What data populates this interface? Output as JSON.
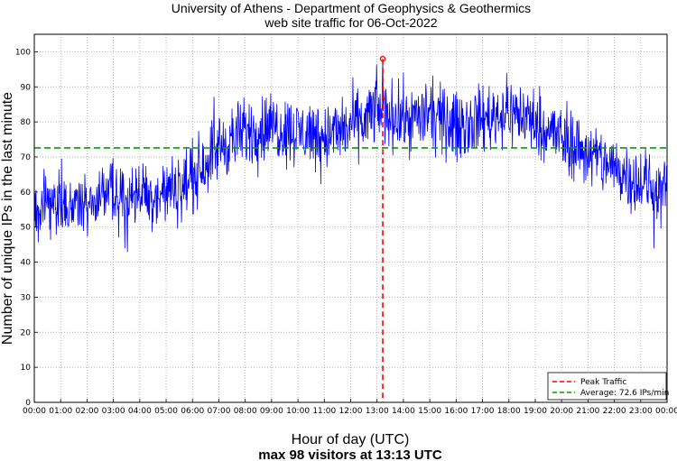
{
  "chart_data": {
    "type": "line",
    "title": "University of Athens - Department of Geophysics & Geothermics",
    "subtitle": "web site traffic for 06-Oct-2022",
    "xlabel": "Hour of day (UTC)",
    "ylabel": "Number of unique IPs in the last minute",
    "footer": "max 98 visitors at 13:13 UTC",
    "xlim": [
      0,
      24
    ],
    "ylim": [
      0,
      105
    ],
    "grid": true,
    "x_ticks": [
      "00:00",
      "01:00",
      "02:00",
      "03:00",
      "04:00",
      "05:00",
      "06:00",
      "07:00",
      "08:00",
      "09:00",
      "10:00",
      "11:00",
      "12:00",
      "13:00",
      "14:00",
      "15:00",
      "16:00",
      "17:00",
      "18:00",
      "19:00",
      "20:00",
      "21:00",
      "22:00",
      "23:00",
      "00:00"
    ],
    "y_ticks": [
      0,
      10,
      20,
      30,
      40,
      50,
      60,
      70,
      80,
      90,
      100
    ],
    "hourly_profile": {
      "hours": [
        0,
        0.5,
        1,
        1.5,
        2,
        2.5,
        3,
        3.5,
        4,
        4.5,
        5,
        5.5,
        6,
        6.5,
        7,
        7.5,
        8,
        8.5,
        9,
        9.5,
        10,
        10.5,
        11,
        11.5,
        12,
        12.5,
        13,
        13.5,
        14,
        14.5,
        15,
        15.5,
        16,
        16.5,
        17,
        17.5,
        18,
        18.5,
        19,
        19.5,
        20,
        20.5,
        21,
        21.5,
        22,
        22.5,
        23,
        23.5,
        24
      ],
      "values": [
        56,
        57,
        57,
        56,
        57,
        58,
        59,
        58,
        60,
        59,
        60,
        61,
        64,
        69,
        73,
        75,
        77,
        78,
        79,
        78,
        77,
        77,
        76,
        77,
        79,
        80,
        84,
        82,
        81,
        81,
        82,
        80,
        79,
        80,
        81,
        82,
        83,
        82,
        80,
        78,
        75,
        73,
        71,
        69,
        67,
        65,
        63,
        61,
        60
      ],
      "noise_amplitude": 6
    },
    "series": [
      {
        "name": "Traffic",
        "color": "#0000ff"
      }
    ],
    "peak": {
      "label": "Peak Traffic",
      "hour": 13.217,
      "value": 98,
      "color": "#ff0000"
    },
    "average": {
      "label": "Average: 72.6 IPs/min",
      "value": 72.6,
      "color": "#00a000"
    },
    "legend_position": "bottom-right"
  }
}
